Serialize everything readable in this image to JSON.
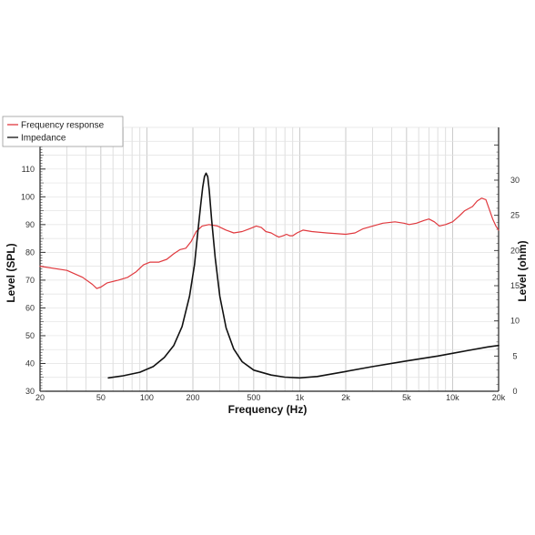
{
  "chart_data": {
    "type": "line",
    "xlabel": "Frequency (Hz)",
    "ylabel_left": "Level (SPL)",
    "ylabel_right": "Level (ohm)",
    "x_scale": "log",
    "xlim": [
      20,
      20000
    ],
    "ylim_left": [
      30,
      125
    ],
    "ylim_right": [
      0,
      37.5
    ],
    "x_ticks": [
      {
        "value": 20,
        "label": "20"
      },
      {
        "value": 50,
        "label": "50"
      },
      {
        "value": 100,
        "label": "100"
      },
      {
        "value": 200,
        "label": "200"
      },
      {
        "value": 500,
        "label": "500"
      },
      {
        "value": 1000,
        "label": "1k"
      },
      {
        "value": 2000,
        "label": "2k"
      },
      {
        "value": 5000,
        "label": "5k"
      },
      {
        "value": 10000,
        "label": "10k"
      },
      {
        "value": 20000,
        "label": "20k"
      }
    ],
    "y_ticks_left": [
      30,
      40,
      50,
      60,
      70,
      80,
      90,
      100,
      110,
      120
    ],
    "y_ticks_right": [
      0,
      5,
      10,
      15,
      20,
      25,
      30
    ],
    "grid": true,
    "legend_position": "top-left",
    "series": [
      {
        "name": "Frequency response",
        "axis": "left",
        "color": "#e0393e",
        "points": [
          [
            20,
            75
          ],
          [
            30,
            73.5
          ],
          [
            38,
            71
          ],
          [
            44,
            68.5
          ],
          [
            47,
            67
          ],
          [
            50,
            67.5
          ],
          [
            55,
            69
          ],
          [
            65,
            70
          ],
          [
            75,
            71
          ],
          [
            85,
            73
          ],
          [
            95,
            75.5
          ],
          [
            105,
            76.5
          ],
          [
            120,
            76.5
          ],
          [
            135,
            77.5
          ],
          [
            150,
            79.5
          ],
          [
            165,
            81
          ],
          [
            180,
            81.5
          ],
          [
            195,
            84
          ],
          [
            210,
            87.5
          ],
          [
            230,
            89.5
          ],
          [
            255,
            90
          ],
          [
            290,
            89.5
          ],
          [
            330,
            88
          ],
          [
            370,
            87
          ],
          [
            420,
            87.5
          ],
          [
            470,
            88.5
          ],
          [
            520,
            89.5
          ],
          [
            560,
            89
          ],
          [
            600,
            87.5
          ],
          [
            650,
            87
          ],
          [
            700,
            86
          ],
          [
            730,
            85.5
          ],
          [
            780,
            86
          ],
          [
            820,
            86.5
          ],
          [
            860,
            86
          ],
          [
            900,
            86
          ],
          [
            960,
            87
          ],
          [
            1050,
            88
          ],
          [
            1200,
            87.5
          ],
          [
            1500,
            87
          ],
          [
            2000,
            86.5
          ],
          [
            2300,
            87
          ],
          [
            2600,
            88.5
          ],
          [
            3000,
            89.5
          ],
          [
            3500,
            90.5
          ],
          [
            4200,
            91
          ],
          [
            4800,
            90.5
          ],
          [
            5200,
            90
          ],
          [
            5800,
            90.5
          ],
          [
            6500,
            91.5
          ],
          [
            7000,
            92
          ],
          [
            7600,
            91
          ],
          [
            8200,
            89.5
          ],
          [
            9000,
            90
          ],
          [
            10000,
            91
          ],
          [
            11000,
            93
          ],
          [
            12000,
            95
          ],
          [
            13500,
            96.5
          ],
          [
            14500,
            98.5
          ],
          [
            15500,
            99.5
          ],
          [
            16500,
            99
          ],
          [
            17500,
            95
          ],
          [
            18300,
            92
          ],
          [
            19200,
            89.5
          ],
          [
            20000,
            88
          ]
        ]
      },
      {
        "name": "Impedance",
        "axis": "right",
        "color": "#111111",
        "points": [
          [
            56,
            1.9
          ],
          [
            70,
            2.2
          ],
          [
            90,
            2.7
          ],
          [
            110,
            3.5
          ],
          [
            130,
            4.8
          ],
          [
            150,
            6.5
          ],
          [
            170,
            9.2
          ],
          [
            190,
            13.5
          ],
          [
            205,
            18
          ],
          [
            215,
            22.5
          ],
          [
            225,
            26.5
          ],
          [
            232,
            29
          ],
          [
            238,
            30.5
          ],
          [
            244,
            31
          ],
          [
            250,
            30.5
          ],
          [
            256,
            28.5
          ],
          [
            265,
            24.5
          ],
          [
            280,
            19
          ],
          [
            300,
            13.5
          ],
          [
            330,
            9
          ],
          [
            370,
            6
          ],
          [
            420,
            4.2
          ],
          [
            500,
            3
          ],
          [
            650,
            2.3
          ],
          [
            800,
            2
          ],
          [
            1000,
            1.9
          ],
          [
            1300,
            2.1
          ],
          [
            2000,
            2.8
          ],
          [
            3000,
            3.5
          ],
          [
            5000,
            4.3
          ],
          [
            8000,
            5
          ],
          [
            12000,
            5.7
          ],
          [
            17000,
            6.3
          ],
          [
            20000,
            6.5
          ]
        ]
      }
    ]
  }
}
